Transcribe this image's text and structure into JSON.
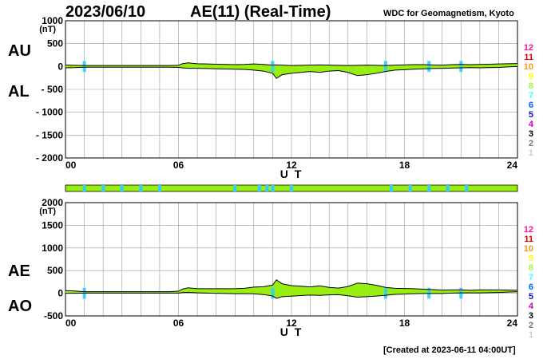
{
  "header": {
    "date": "2023/06/10",
    "title": "AE(11) (Real-Time)",
    "source": "WDC for Geomagnetism, Kyoto",
    "created": "[Created at 2023-06-11 04:00UT]"
  },
  "colors": {
    "fill": "#99ee11",
    "highlight": "#33ccff",
    "line": "#000000",
    "grid": "#999999"
  },
  "station_scale": [
    {
      "label": "12",
      "color": "#ff1493"
    },
    {
      "label": "11",
      "color": "#dd0000"
    },
    {
      "label": "10",
      "color": "#ff9900"
    },
    {
      "label": "9",
      "color": "#ffff00"
    },
    {
      "label": "8",
      "color": "#99ff33"
    },
    {
      "label": "7",
      "color": "#33ffff"
    },
    {
      "label": "6",
      "color": "#0066ff"
    },
    {
      "label": "5",
      "color": "#1111cc"
    },
    {
      "label": "4",
      "color": "#cc00cc"
    },
    {
      "label": "3",
      "color": "#000000"
    },
    {
      "label": "2",
      "color": "#777777"
    },
    {
      "label": "1",
      "color": "#cccccc"
    }
  ],
  "chart_data": [
    {
      "type": "area",
      "name": "AU/AL",
      "series_labels": [
        "AU",
        "AL"
      ],
      "ylabel": "(nT)",
      "xlabel": "U T",
      "xlim": [
        0,
        24
      ],
      "ylim": [
        -2000,
        1000
      ],
      "xticks": [
        "00",
        "06",
        "12",
        "18",
        "24"
      ],
      "yticks": [
        "1000",
        "500",
        "0",
        "- 500",
        "- 1000",
        "- 1500",
        "- 2000"
      ],
      "x": [
        0,
        0.5,
        1,
        1.5,
        2,
        2.5,
        3,
        3.5,
        4,
        4.5,
        5,
        5.5,
        6,
        6.2,
        6.5,
        7,
        7.5,
        8,
        8.5,
        9,
        9.5,
        10,
        10.5,
        11,
        11.2,
        11.5,
        12,
        12.5,
        13,
        13.5,
        14,
        14.5,
        15,
        15.5,
        16,
        16.5,
        17,
        17.5,
        18,
        18.5,
        19,
        19.5,
        20,
        20.5,
        21,
        21.5,
        22,
        22.5,
        23,
        23.5,
        24
      ],
      "upper": [
        30,
        25,
        20,
        20,
        20,
        20,
        20,
        20,
        20,
        20,
        20,
        20,
        25,
        60,
        80,
        60,
        55,
        50,
        45,
        40,
        45,
        55,
        45,
        30,
        35,
        30,
        20,
        25,
        30,
        35,
        30,
        25,
        20,
        25,
        30,
        25,
        20,
        30,
        35,
        40,
        40,
        35,
        30,
        40,
        45,
        40,
        45,
        50,
        55,
        60,
        65
      ],
      "lower": [
        -30,
        -25,
        -15,
        -15,
        -15,
        -15,
        -15,
        -15,
        -15,
        -15,
        -15,
        -15,
        -20,
        -30,
        -40,
        -40,
        -45,
        -50,
        -55,
        -60,
        -65,
        -80,
        -100,
        -150,
        -260,
        -180,
        -150,
        -130,
        -110,
        -130,
        -100,
        -90,
        -130,
        -200,
        -180,
        -150,
        -110,
        -80,
        -70,
        -60,
        -50,
        -45,
        -40,
        -35,
        -30,
        -25,
        -30,
        -25,
        -20,
        -10,
        0
      ],
      "highlights": [
        1,
        11,
        17,
        19.3,
        21
      ]
    },
    {
      "type": "area",
      "name": "AE/AO",
      "series_labels": [
        "AE",
        "AO"
      ],
      "ylabel": "(nT)",
      "xlabel": "U T",
      "xlim": [
        0,
        24
      ],
      "ylim": [
        -500,
        2000
      ],
      "xticks": [
        "00",
        "06",
        "12",
        "18",
        "24"
      ],
      "yticks": [
        "2000",
        "1500",
        "1000",
        "500",
        "0",
        "-500"
      ],
      "x": [
        0,
        0.5,
        1,
        1.5,
        2,
        2.5,
        3,
        3.5,
        4,
        4.5,
        5,
        5.5,
        6,
        6.2,
        6.5,
        7,
        7.5,
        8,
        8.5,
        9,
        9.5,
        10,
        10.5,
        11,
        11.2,
        11.5,
        12,
        12.5,
        13,
        13.5,
        14,
        14.5,
        15,
        15.5,
        16,
        16.5,
        17,
        17.5,
        18,
        18.5,
        19,
        19.5,
        20,
        20.5,
        21,
        21.5,
        22,
        22.5,
        23,
        23.5,
        24
      ],
      "upper": [
        60,
        50,
        35,
        35,
        35,
        35,
        35,
        35,
        35,
        35,
        35,
        35,
        45,
        90,
        120,
        100,
        100,
        100,
        100,
        100,
        110,
        135,
        145,
        180,
        295,
        210,
        170,
        155,
        140,
        165,
        130,
        115,
        150,
        225,
        210,
        175,
        130,
        110,
        105,
        100,
        90,
        80,
        70,
        75,
        75,
        65,
        75,
        75,
        75,
        70,
        65
      ],
      "lower": [
        0,
        0,
        3,
        3,
        3,
        3,
        3,
        3,
        3,
        3,
        3,
        3,
        3,
        15,
        20,
        10,
        5,
        0,
        -5,
        -10,
        -10,
        -12,
        -28,
        -60,
        -112,
        -75,
        -65,
        -52,
        -40,
        -47,
        -35,
        -32,
        -55,
        -87,
        -75,
        -62,
        -45,
        -25,
        -17,
        -10,
        -5,
        -5,
        -5,
        3,
        8,
        8,
        8,
        13,
        18,
        25,
        33
      ],
      "highlights": [
        1,
        11,
        17,
        19.3,
        21
      ]
    }
  ],
  "station_bar": {
    "segments": [
      1,
      2,
      3,
      4,
      5,
      9,
      10.3,
      10.7,
      11,
      12,
      17.3,
      18.3,
      19.3,
      20.3,
      21.3
    ]
  }
}
